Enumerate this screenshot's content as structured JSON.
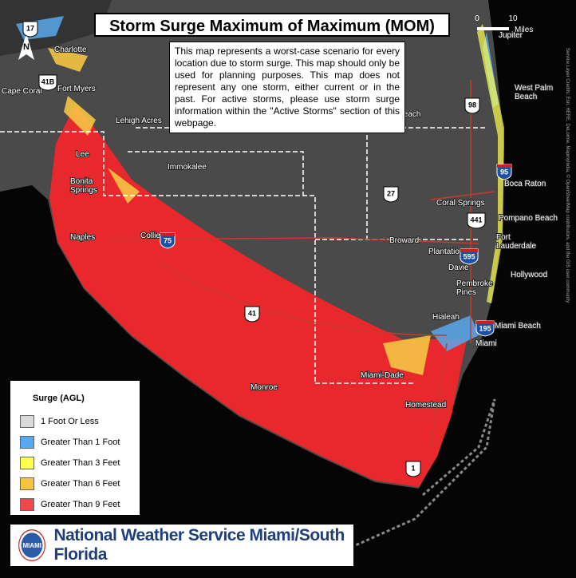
{
  "title": "Storm Surge Maximum of Maximum (MOM)",
  "description": "This map represents a worst-case scenario for every location due to storm surge. This map should only be used for planning purposes. This map does not represent any one storm, either current or in the past. For active storms, please use storm surge information within the \"Active Storms\" section of this webpage.",
  "legend": {
    "title": "Surge (AGL)",
    "items": [
      {
        "label": "1 Foot Or Less",
        "color": "#d9d9d9"
      },
      {
        "label": "Greater Than 1 Foot",
        "color": "#59a8ef"
      },
      {
        "label": "Greater Than 3 Feet",
        "color": "#ffff4d"
      },
      {
        "label": "Greater Than 6 Feet",
        "color": "#f5c542"
      },
      {
        "label": "Greater Than 9 Feet",
        "color": "#f0474a"
      }
    ]
  },
  "scale": {
    "ticks": [
      "0",
      "10"
    ],
    "unit": "Miles"
  },
  "places": [
    "Charlotte",
    "Fort Myers",
    "Cape Coral",
    "Lehigh Acres",
    "Lee",
    "Immokalee",
    "Bonita Springs",
    "Naples",
    "Collier",
    "m Beach",
    "Broward",
    "Coral Springs",
    "Pompano Beach",
    "Boca Raton",
    "West Palm Beach",
    "Jupiter",
    "Fort Lauderdale",
    "Plantation",
    "Davie",
    "Hollywood",
    "Pembroke Pines",
    "Hialeah",
    "Miami Beach",
    "Miami",
    "Miami-Dade",
    "Monroe",
    "Homestead"
  ],
  "highways": [
    "17",
    "41B",
    "98",
    "95",
    "27",
    "441",
    "75",
    "595",
    "41",
    "195",
    "1"
  ],
  "attribution": "Service Layer Credits: Esri, HERE, DeLorme, MapmyIndia, © OpenStreetMap contributors, and the GIS user community",
  "north": "N",
  "logo": "MIAMI",
  "footer": "National Weather Service Miami/South Florida"
}
